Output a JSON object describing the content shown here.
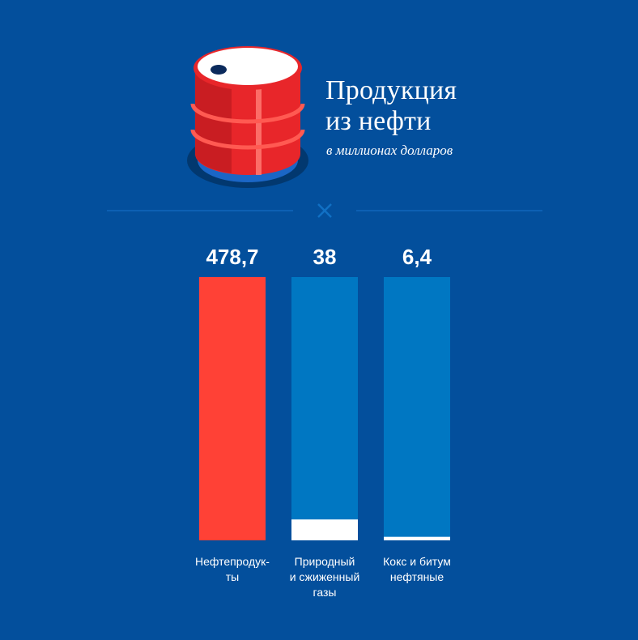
{
  "header": {
    "title_line1": "Продукция",
    "title_line2": "из нефти",
    "subtitle": "в миллионах долларов"
  },
  "colors": {
    "background": "#034f9c",
    "highlight_bar": "#ff4136",
    "track": "#0077c2",
    "fill": "#ffffff"
  },
  "chart_data": {
    "type": "bar",
    "categories": [
      [
        "Нефтепродук-",
        "ты"
      ],
      [
        "Природный",
        "и сжиженный",
        "газы"
      ],
      [
        "Кокс и битум",
        "нефтяные"
      ]
    ],
    "values": [
      478.7,
      38,
      6.4
    ],
    "value_labels": [
      "478,7",
      "38",
      "6,4"
    ],
    "ylim": [
      0,
      478.7
    ],
    "title": "Продукция из нефти",
    "ylabel": "в миллионах долларов"
  }
}
